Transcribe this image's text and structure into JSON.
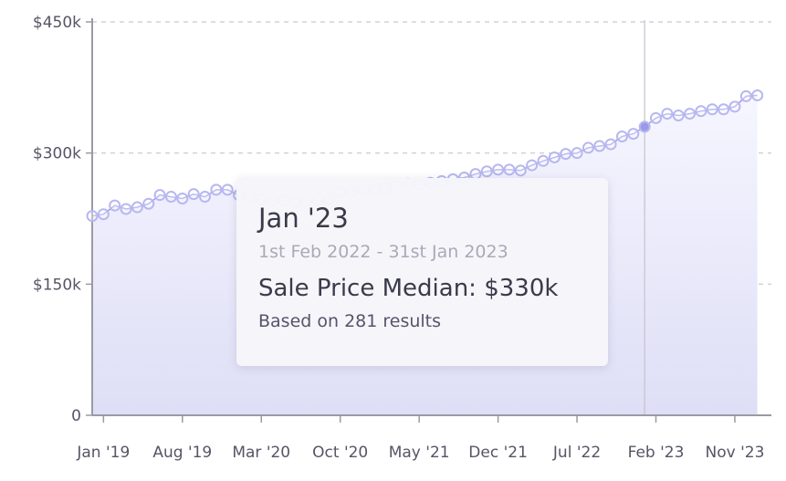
{
  "chart_data": {
    "type": "area",
    "title": "",
    "xlabel": "",
    "ylabel": "",
    "ylim": [
      0,
      450000
    ],
    "y_ticks": [
      {
        "value": 0,
        "label": "0"
      },
      {
        "value": 150000,
        "label": "$150k"
      },
      {
        "value": 300000,
        "label": "$300k"
      },
      {
        "value": 450000,
        "label": "$450k"
      }
    ],
    "x_ticks": [
      "Jan '19",
      "Aug '19",
      "Mar '20",
      "Oct '20",
      "May '21",
      "Dec '21",
      "Jul '22",
      "Feb '23",
      "Nov '23"
    ],
    "x_range": [
      "Dec 2018",
      "Nov 2023"
    ],
    "grid": "horizontal-dashed",
    "colors": {
      "line": "#9a9ae8",
      "marker": "#b7b7f0",
      "fill_top": "#f6f6ff",
      "fill_bottom": "#dedef6",
      "highlight": "#9a9ae8"
    },
    "series": [
      {
        "points": [
          {
            "x": "2018-12",
            "y": 228000
          },
          {
            "x": "2019-01",
            "y": 230000
          },
          {
            "x": "2019-02",
            "y": 240000
          },
          {
            "x": "2019-03",
            "y": 236000
          },
          {
            "x": "2019-04",
            "y": 238000
          },
          {
            "x": "2019-05",
            "y": 242000
          },
          {
            "x": "2019-06",
            "y": 252000
          },
          {
            "x": "2019-07",
            "y": 250000
          },
          {
            "x": "2019-08",
            "y": 248000
          },
          {
            "x": "2019-09",
            "y": 253000
          },
          {
            "x": "2019-10",
            "y": 250000
          },
          {
            "x": "2019-11",
            "y": 258000
          },
          {
            "x": "2019-12",
            "y": 258000
          },
          {
            "x": "2020-01",
            "y": 252000
          },
          {
            "x": "2020-02",
            "y": 250000
          },
          {
            "x": "2020-03",
            "y": 247000
          },
          {
            "x": "2020-04",
            "y": 246000
          },
          {
            "x": "2020-05",
            "y": 246000
          },
          {
            "x": "2020-06",
            "y": 244000
          },
          {
            "x": "2020-07",
            "y": 245000
          },
          {
            "x": "2020-08",
            "y": 246000
          },
          {
            "x": "2020-09",
            "y": 247000
          },
          {
            "x": "2020-10",
            "y": 255000
          },
          {
            "x": "2020-11",
            "y": 256000
          },
          {
            "x": "2020-12",
            "y": 257000
          },
          {
            "x": "2021-01",
            "y": 258000
          },
          {
            "x": "2021-02",
            "y": 260000
          },
          {
            "x": "2021-03",
            "y": 262000
          },
          {
            "x": "2021-04",
            "y": 265000
          },
          {
            "x": "2021-05",
            "y": 264000
          },
          {
            "x": "2021-06",
            "y": 266000
          },
          {
            "x": "2021-07",
            "y": 268000
          },
          {
            "x": "2021-08",
            "y": 270000
          },
          {
            "x": "2021-09",
            "y": 272000
          },
          {
            "x": "2021-10",
            "y": 276000
          },
          {
            "x": "2021-11",
            "y": 279000
          },
          {
            "x": "2021-12",
            "y": 281000
          },
          {
            "x": "2022-01",
            "y": 281000
          },
          {
            "x": "2022-02",
            "y": 280000
          },
          {
            "x": "2022-03",
            "y": 286000
          },
          {
            "x": "2022-04",
            "y": 291000
          },
          {
            "x": "2022-05",
            "y": 295000
          },
          {
            "x": "2022-06",
            "y": 299000
          },
          {
            "x": "2022-07",
            "y": 300000
          },
          {
            "x": "2022-08",
            "y": 306000
          },
          {
            "x": "2022-09",
            "y": 308000
          },
          {
            "x": "2022-10",
            "y": 310000
          },
          {
            "x": "2022-11",
            "y": 319000
          },
          {
            "x": "2022-12",
            "y": 322000
          },
          {
            "x": "2023-01",
            "y": 330000
          },
          {
            "x": "2023-02",
            "y": 340000
          },
          {
            "x": "2023-03",
            "y": 345000
          },
          {
            "x": "2023-04",
            "y": 343000
          },
          {
            "x": "2023-05",
            "y": 345000
          },
          {
            "x": "2023-06",
            "y": 348000
          },
          {
            "x": "2023-07",
            "y": 350000
          },
          {
            "x": "2023-08",
            "y": 350000
          },
          {
            "x": "2023-09",
            "y": 353000
          },
          {
            "x": "2023-10",
            "y": 365000
          },
          {
            "x": "2023-11",
            "y": 366000
          }
        ]
      }
    ],
    "highlighted_point": {
      "x": "2023-01",
      "y": 330000
    }
  },
  "tooltip": {
    "title": "Jan '23",
    "range": "1st Feb 2022 - 31st Jan 2023",
    "value": "Sale Price Median: $330k",
    "count": "Based on 281 results"
  }
}
